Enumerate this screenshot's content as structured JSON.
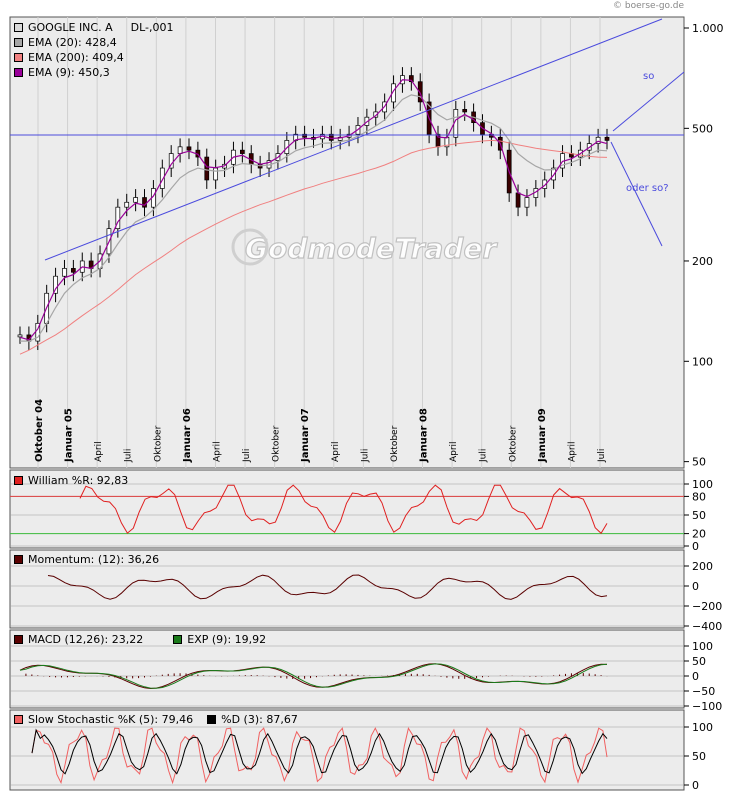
{
  "credit": "© boerse-go.de",
  "watermark": "GodmodeTrader",
  "main": {
    "legend": [
      {
        "label": "GOOGLE INC. A",
        "value": "DL-,001",
        "color": "#d9d9d9"
      },
      {
        "label": "EMA (20): 428,4",
        "color": "#a6a6a6"
      },
      {
        "label": "EMA (200): 409,4",
        "color": "#f08080"
      },
      {
        "label": "EMA (9): 450,3",
        "color": "#990099"
      }
    ],
    "annotations": {
      "so": "so",
      "oder_so": "oder so?"
    }
  },
  "panels": [
    {
      "id": "william",
      "legend": [
        {
          "label": "William %R: 92,83",
          "color": "#e02020"
        }
      ],
      "yticks": [
        "100",
        "80",
        "50",
        "20",
        "0"
      ]
    },
    {
      "id": "momentum",
      "legend": [
        {
          "label": "Momentum: (12): 36,26",
          "color": "#5a0000"
        }
      ],
      "yticks": [
        "200",
        "0",
        "−200",
        "−400"
      ]
    },
    {
      "id": "macd",
      "legend": [
        {
          "label": "MACD (12,26): 23,22",
          "color": "#5a0000"
        },
        {
          "label": "EXP (9): 19,92",
          "color": "#1a7a1a"
        }
      ],
      "yticks": [
        "100",
        "50",
        "0",
        "−50",
        "−100"
      ]
    },
    {
      "id": "stoch",
      "legend": [
        {
          "label": "Slow Stochastic %K (5): 79,46",
          "color": "#f06060"
        },
        {
          "label": "%D (3): 87,67",
          "color": "#000000"
        }
      ],
      "yticks": [
        "100",
        "50",
        "0"
      ]
    }
  ],
  "chart_data": {
    "type": "line",
    "scale": "log",
    "ylim": [
      50,
      1050
    ],
    "yticks": [
      "1.000",
      "500",
      "200",
      "100",
      "50"
    ],
    "x_labels": [
      "Oktober 04",
      "Januar 05",
      "April",
      "Juli",
      "Oktober",
      "Januar 06",
      "April",
      "Juli",
      "Oktober",
      "Januar 07",
      "April",
      "Juli",
      "Oktober",
      "Januar 08",
      "April",
      "Juli",
      "Oktober",
      "Januar 09",
      "April",
      "Juli"
    ],
    "series": [
      {
        "values": [
          120,
          115,
          130,
          160,
          180,
          190,
          185,
          200,
          190,
          210,
          250,
          290,
          300,
          310,
          290,
          330,
          380,
          420,
          440,
          430,
          410,
          350,
          380,
          390,
          430,
          420,
          390,
          380,
          400,
          420,
          460,
          480,
          470,
          465,
          480,
          460,
          470,
          480,
          510,
          540,
          560,
          600,
          680,
          720,
          690,
          600,
          480,
          440,
          470,
          570,
          560,
          520,
          480,
          470,
          430,
          320,
          290,
          310,
          330,
          350,
          380,
          420,
          410,
          430,
          450,
          470,
          460
        ]
      },
      {
        "values": [
          115,
          115,
          118,
          130,
          145,
          160,
          170,
          178,
          183,
          190,
          205,
          225,
          245,
          262,
          270,
          285,
          305,
          330,
          355,
          370,
          380,
          375,
          372,
          374,
          385,
          392,
          390,
          386,
          388,
          396,
          412,
          428,
          437,
          443,
          451,
          452,
          456,
          461,
          474,
          490,
          508,
          530,
          570,
          610,
          630,
          622,
          585,
          550,
          530,
          540,
          545,
          540,
          528,
          518,
          500,
          460,
          420,
          400,
          385,
          375,
          376,
          388,
          395,
          405,
          418,
          430,
          428
        ]
      },
      {
        "values": [
          105,
          108,
          112,
          116,
          120,
          125,
          131,
          137,
          143,
          149,
          156,
          164,
          173,
          182,
          190,
          198,
          206,
          215,
          225,
          234,
          242,
          250,
          258,
          266,
          274,
          281,
          288,
          295,
          301,
          308,
          315,
          322,
          329,
          335,
          342,
          348,
          354,
          360,
          366,
          373,
          380,
          388,
          398,
          410,
          422,
          430,
          436,
          440,
          445,
          449,
          452,
          455,
          458,
          460,
          458,
          452,
          446,
          441,
          436,
          432,
          428,
          425,
          420,
          416,
          412,
          410,
          409
        ]
      },
      {
        "values": [
          118,
          116,
          125,
          145,
          165,
          178,
          182,
          192,
          190,
          200,
          228,
          262,
          283,
          298,
          294,
          313,
          350,
          390,
          420,
          427,
          418,
          383,
          381,
          386,
          410,
          415,
          402,
          390,
          395,
          409,
          437,
          462,
          466,
          466,
          474,
          466,
          468,
          475,
          496,
          523,
          546,
          582,
          648,
          699,
          697,
          638,
          536,
          471,
          468,
          530,
          550,
          531,
          500,
          482,
          450,
          370,
          320,
          312,
          322,
          337,
          362,
          398,
          405,
          420,
          438,
          457,
          450
        ]
      }
    ]
  }
}
